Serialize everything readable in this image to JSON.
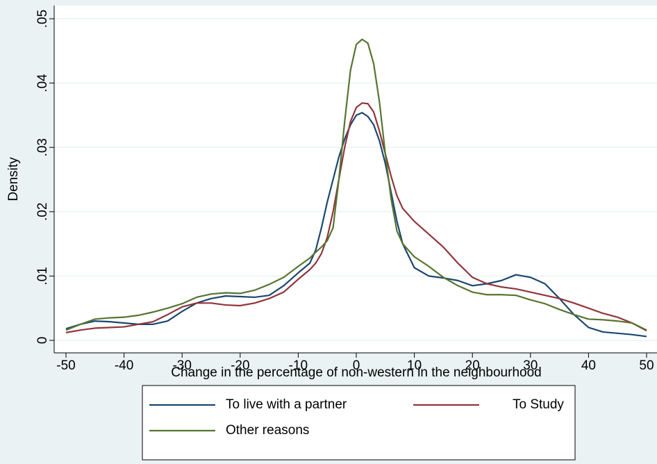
{
  "chart_data": {
    "type": "line",
    "xlabel": "Change in the percentage of non-western in the neighbourhood",
    "ylabel": "Density",
    "x": [
      -50,
      -47.5,
      -45,
      -42.5,
      -40,
      -37.5,
      -35,
      -32.5,
      -30,
      -27.5,
      -25,
      -22.5,
      -20,
      -17.5,
      -15,
      -12.5,
      -10,
      -8,
      -7,
      -6,
      -5,
      -4,
      -3,
      -2,
      -1,
      0,
      1,
      2,
      3,
      4,
      5,
      6,
      7,
      8,
      10,
      12.5,
      15,
      17.5,
      20,
      22.5,
      25,
      27.5,
      30,
      32.5,
      35,
      37.5,
      40,
      42.5,
      45,
      47.5,
      50
    ],
    "series": [
      {
        "name": "To live with a partner",
        "color": "#1a476f",
        "values": [
          0.0018,
          0.0025,
          0.003,
          0.0029,
          0.0027,
          0.0025,
          0.0025,
          0.003,
          0.0045,
          0.0058,
          0.0065,
          0.0069,
          0.0068,
          0.0067,
          0.007,
          0.0085,
          0.0105,
          0.012,
          0.014,
          0.0175,
          0.0215,
          0.025,
          0.0285,
          0.0313,
          0.0335,
          0.035,
          0.0354,
          0.0348,
          0.0335,
          0.031,
          0.0275,
          0.023,
          0.0185,
          0.015,
          0.0113,
          0.01,
          0.0097,
          0.0093,
          0.0085,
          0.0088,
          0.0093,
          0.0102,
          0.0098,
          0.0088,
          0.0065,
          0.004,
          0.002,
          0.0013,
          0.0011,
          0.0009,
          0.0006
        ]
      },
      {
        "name": "To Study",
        "color": "#90353b",
        "values": [
          0.0012,
          0.0016,
          0.0019,
          0.002,
          0.0021,
          0.0025,
          0.0029,
          0.004,
          0.0052,
          0.0058,
          0.0058,
          0.0055,
          0.0054,
          0.0058,
          0.0065,
          0.0075,
          0.0095,
          0.011,
          0.012,
          0.0135,
          0.016,
          0.02,
          0.025,
          0.03,
          0.034,
          0.0362,
          0.0369,
          0.0368,
          0.0355,
          0.0325,
          0.029,
          0.0255,
          0.0225,
          0.0205,
          0.0185,
          0.0165,
          0.0145,
          0.012,
          0.0098,
          0.0088,
          0.0083,
          0.008,
          0.0075,
          0.007,
          0.0065,
          0.0058,
          0.005,
          0.0042,
          0.0036,
          0.0027,
          0.0015
        ]
      },
      {
        "name": "Other reasons",
        "color": "#55752f",
        "values": [
          0.0016,
          0.0025,
          0.0033,
          0.0035,
          0.0036,
          0.0039,
          0.0044,
          0.005,
          0.0057,
          0.0067,
          0.0072,
          0.0074,
          0.0073,
          0.0078,
          0.0087,
          0.0098,
          0.0115,
          0.0128,
          0.0137,
          0.0145,
          0.0155,
          0.0175,
          0.025,
          0.034,
          0.042,
          0.046,
          0.0468,
          0.0462,
          0.043,
          0.037,
          0.029,
          0.022,
          0.017,
          0.015,
          0.013,
          0.0115,
          0.0098,
          0.0085,
          0.0075,
          0.0071,
          0.0071,
          0.007,
          0.0063,
          0.0057,
          0.0048,
          0.004,
          0.0033,
          0.0032,
          0.003,
          0.0027,
          0.0016
        ]
      }
    ],
    "xlim": [
      -50,
      50
    ],
    "xticks": [
      -50,
      -40,
      -30,
      -20,
      -10,
      0,
      10,
      20,
      30,
      40,
      50
    ],
    "ylim": [
      0,
      0.05
    ],
    "yticks": [
      0,
      {
        "value": 0.01,
        "label": ".01"
      },
      {
        "value": 0.02,
        "label": ".02"
      },
      {
        "value": 0.03,
        "label": ".03"
      },
      {
        "value": 0.04,
        "label": ".04"
      },
      {
        "value": 0.05,
        "label": ".05"
      }
    ],
    "grid": true,
    "legend_position": "bottom"
  }
}
